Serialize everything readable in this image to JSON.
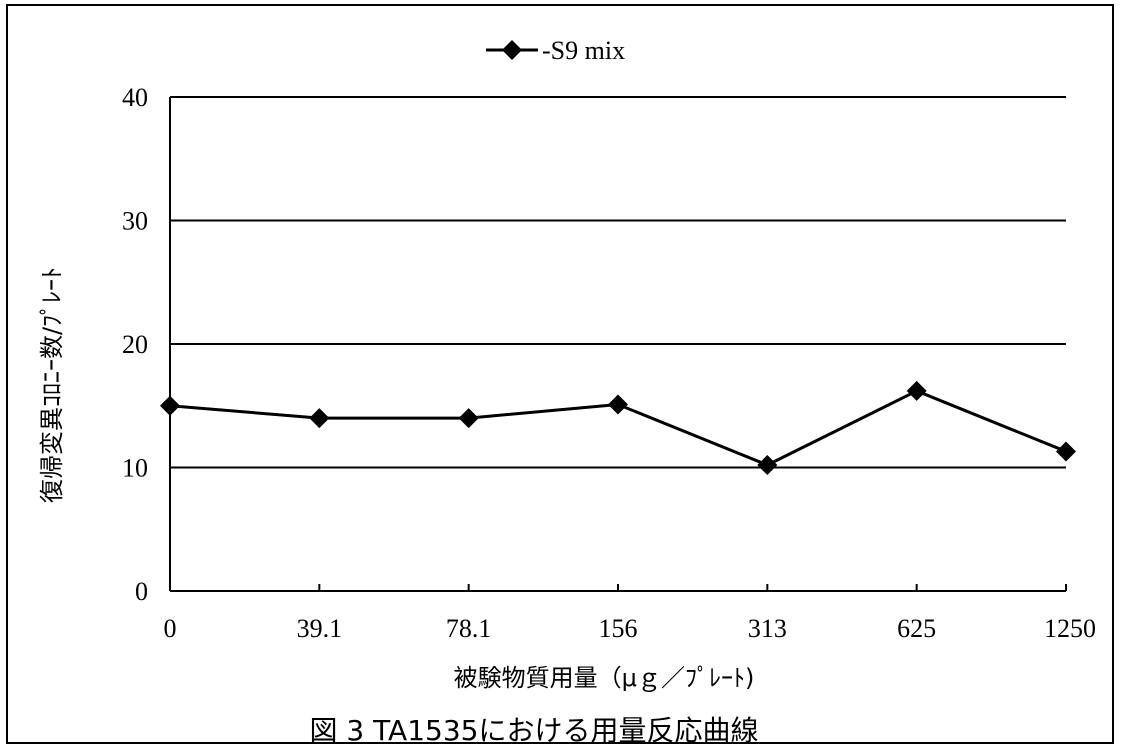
{
  "chart_data": {
    "type": "line",
    "title": "",
    "caption": "図 3 TA1535における用量反応曲線",
    "xlabel": "被験物質用量（μｇ／ﾌﾟﾚｰﾄ)",
    "ylabel": "復帰変異ｺﾛﾆｰ数/ﾌﾟﾚｰﾄ",
    "categories": [
      "0",
      "39.1",
      "78.1",
      "156",
      "313",
      "625",
      "1250"
    ],
    "series": [
      {
        "name": "-S9 mix",
        "values": [
          15,
          14,
          14,
          15.1,
          10.2,
          16.2,
          11.3
        ],
        "color": "#000000",
        "marker": "diamond"
      }
    ],
    "ylim": [
      0,
      40
    ],
    "yticks": [
      0,
      10,
      20,
      30,
      40
    ],
    "grid": true,
    "legend": "top-center"
  }
}
